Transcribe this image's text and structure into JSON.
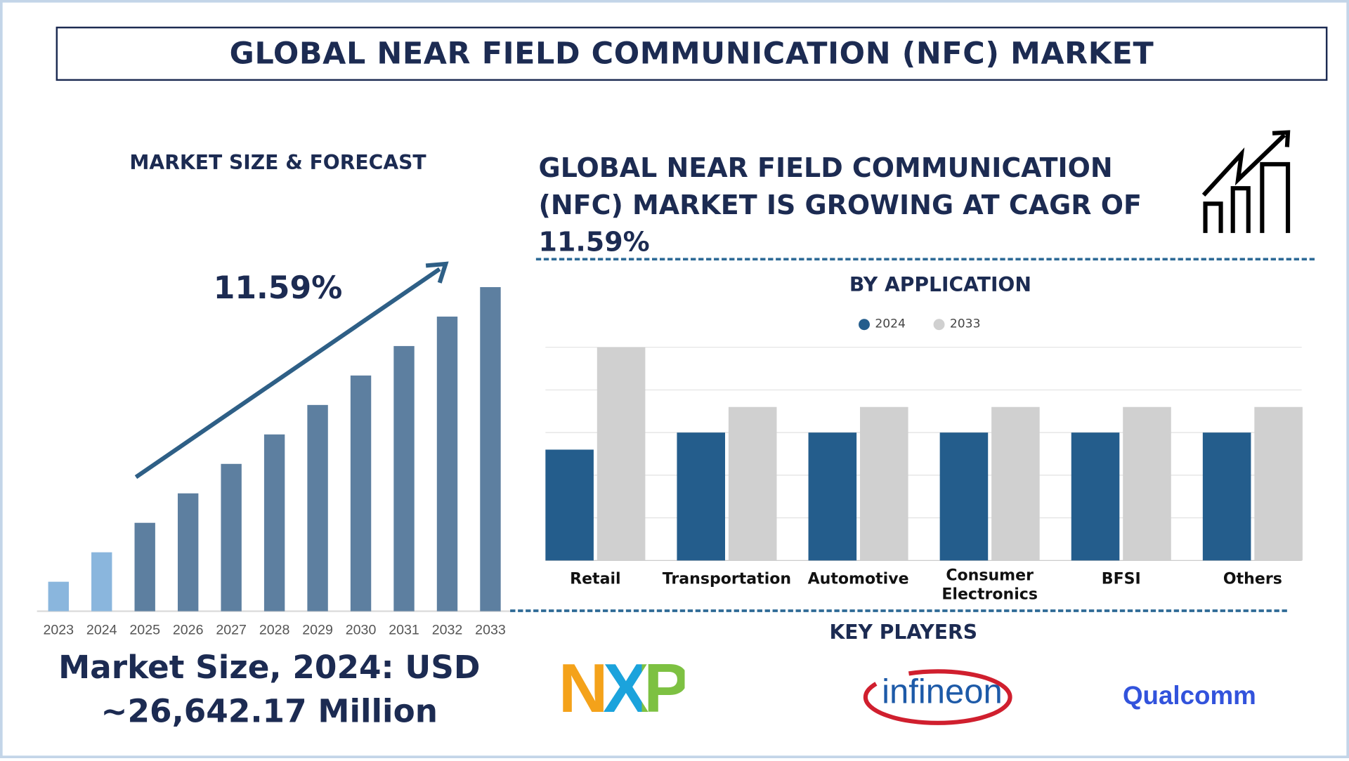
{
  "title": "GLOBAL NEAR FIELD COMMUNICATION (NFC) MARKET",
  "left": {
    "heading": "MARKET SIZE & FORECAST",
    "cagr_label": "11.59%",
    "market_size_line1": "Market Size, 2024: USD",
    "market_size_line2": "~26,642.17 Million"
  },
  "right": {
    "growth_text": "GLOBAL NEAR FIELD COMMUNICATION (NFC) MARKET IS GROWING AT CAGR OF 11.59%",
    "app_heading": "BY APPLICATION",
    "key_players_heading": "KEY PLAYERS",
    "key_players": [
      "NXP",
      "infineon",
      "Qualcomm"
    ]
  },
  "colors": {
    "navy": "#1c2b52",
    "bar_hist": "#8ab6dd",
    "bar_forecast": "#5d7fa0",
    "arrow": "#2e5f86",
    "series_2024": "#245d8c",
    "series_2033": "#d0d0d0"
  },
  "chart_data": [
    {
      "type": "bar",
      "title": "MARKET SIZE & FORECAST",
      "categories": [
        "2023",
        "2024",
        "2025",
        "2026",
        "2027",
        "2028",
        "2029",
        "2030",
        "2031",
        "2032",
        "2033"
      ],
      "values": [
        1,
        2,
        3,
        4,
        5,
        6,
        7,
        8,
        9,
        10,
        11
      ],
      "note_values_relative": true,
      "annotation": "11.59%",
      "grid": false
    },
    {
      "type": "bar",
      "title": "BY APPLICATION",
      "categories": [
        "Retail",
        "Transportation",
        "Automotive",
        "Consumer Electronics",
        "BFSI",
        "Others"
      ],
      "series": [
        {
          "name": "2024",
          "values": [
            2.6,
            3.0,
            3.0,
            3.0,
            3.0,
            3.0
          ]
        },
        {
          "name": "2033",
          "values": [
            5.0,
            3.6,
            3.6,
            3.6,
            3.6,
            3.6
          ]
        }
      ],
      "ylim": [
        0,
        5
      ],
      "grid": true,
      "legend": "top-center"
    }
  ]
}
